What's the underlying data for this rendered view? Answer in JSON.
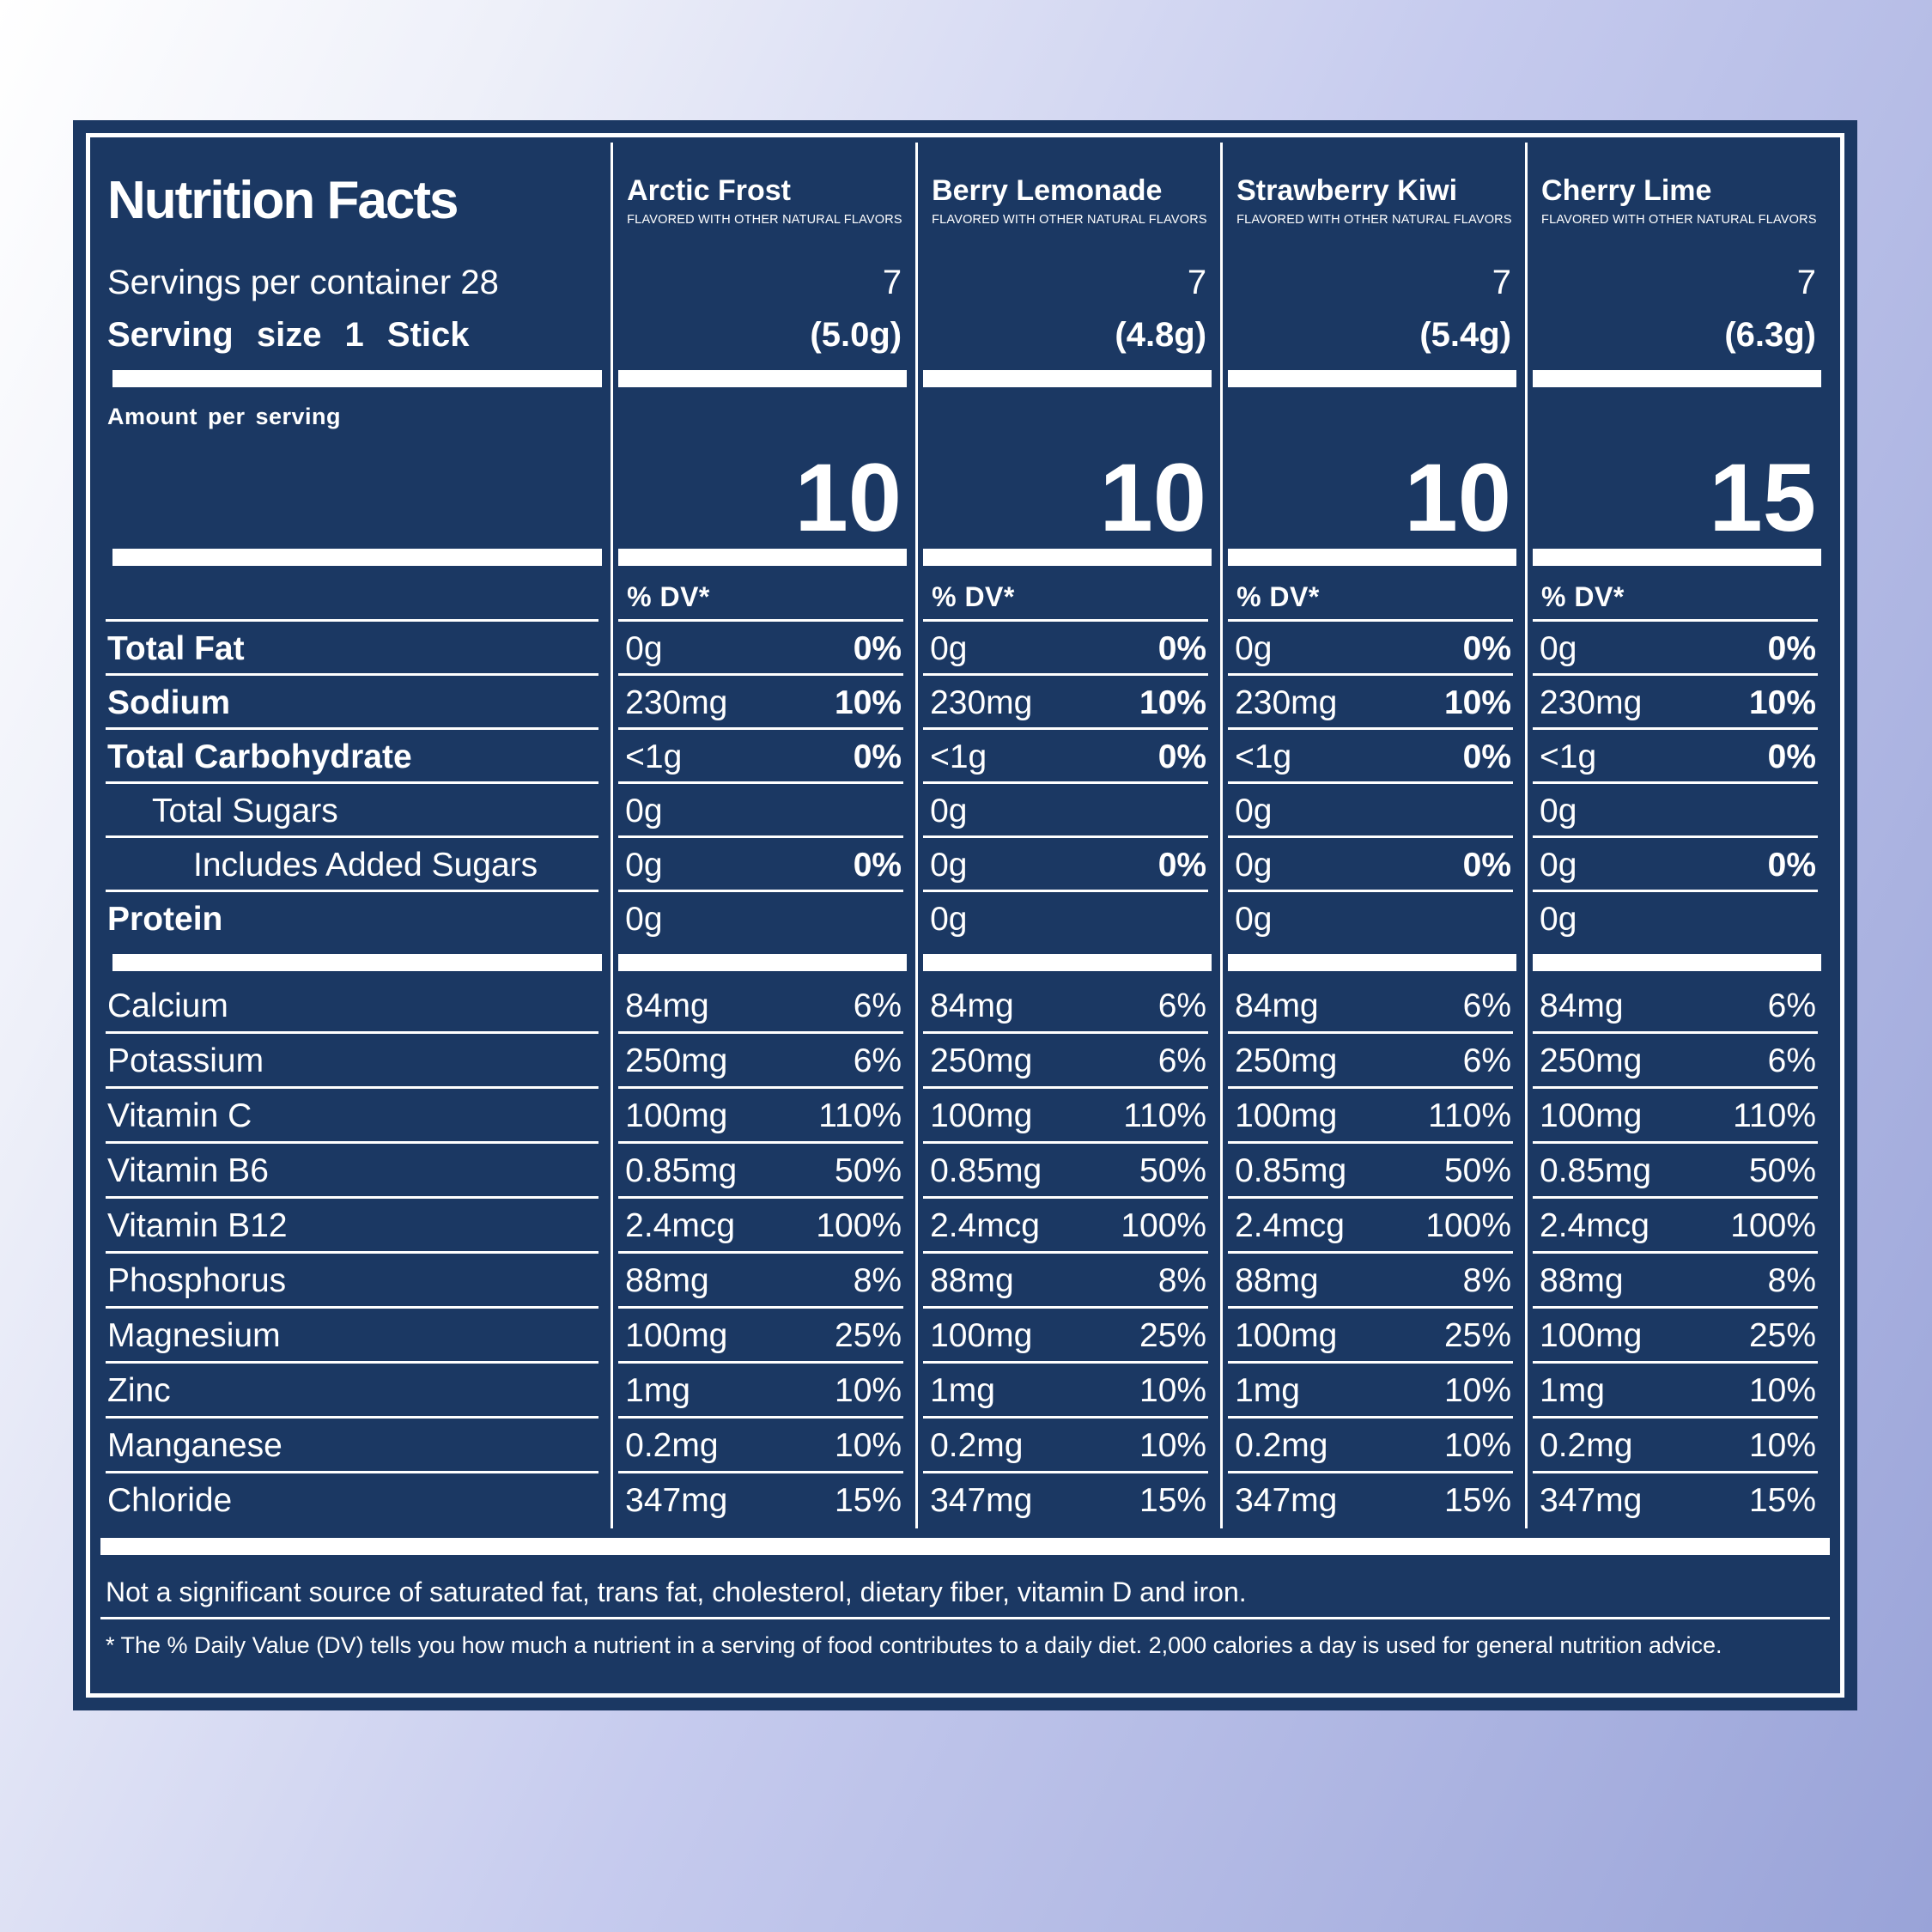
{
  "colors": {
    "panel_bg": "#1b3863",
    "panel_text": "#ffffff",
    "background_top_left": "#ffffff",
    "background_mid": "#c6cbee",
    "background_bottom_right": "#99a3d8"
  },
  "header": {
    "title": "Nutrition Facts",
    "servings_per_container_label": "Servings per container 28",
    "serving_size_label": "Serving size  1 Stick",
    "amount_per_serving_label": "Amount per serving",
    "dv_column_header": "% DV*"
  },
  "flavors": [
    {
      "name": "Arctic Frost",
      "tagline": "FLAVORED WITH OTHER NATURAL FLAVORS",
      "servings_per_container": "7",
      "serving_size": "(5.0g)",
      "calories": "10"
    },
    {
      "name": "Berry Lemonade",
      "tagline": "FLAVORED WITH OTHER NATURAL FLAVORS",
      "servings_per_container": "7",
      "serving_size": "(4.8g)",
      "calories": "10"
    },
    {
      "name": "Strawberry Kiwi",
      "tagline": "FLAVORED WITH OTHER NATURAL FLAVORS",
      "servings_per_container": "7",
      "serving_size": "(5.4g)",
      "calories": "10"
    },
    {
      "name": "Cherry Lime",
      "tagline": "FLAVORED WITH OTHER NATURAL FLAVORS",
      "servings_per_container": "7",
      "serving_size": "(6.3g)",
      "calories": "15"
    }
  ],
  "nutrient_rows": [
    {
      "label": "Total Fat",
      "style": "bold",
      "indent": 0,
      "amount": "0g",
      "dv": "0%",
      "dv_bold": true
    },
    {
      "label": "Sodium",
      "style": "bold",
      "indent": 0,
      "amount": "230mg",
      "dv": "10%",
      "dv_bold": true
    },
    {
      "label": "Total Carbohydrate",
      "style": "bold",
      "indent": 0,
      "amount": "<1g",
      "dv": "0%",
      "dv_bold": true
    },
    {
      "label": "Total Sugars",
      "style": "regular",
      "indent": 1,
      "amount": "0g",
      "dv": "",
      "dv_bold": false
    },
    {
      "label": "Includes Added Sugars",
      "style": "regular",
      "indent": 2,
      "amount": "0g",
      "dv": "0%",
      "dv_bold": true
    },
    {
      "label": "Protein",
      "style": "bold",
      "indent": 0,
      "amount": "0g",
      "dv": "",
      "dv_bold": false
    }
  ],
  "micronutrient_rows": [
    {
      "label": "Calcium",
      "amount": "84mg",
      "dv": "6%"
    },
    {
      "label": "Potassium",
      "amount": "250mg",
      "dv": "6%"
    },
    {
      "label": "Vitamin C",
      "amount": "100mg",
      "dv": "110%"
    },
    {
      "label": "Vitamin B6",
      "amount": "0.85mg",
      "dv": "50%"
    },
    {
      "label": "Vitamin B12",
      "amount": "2.4mcg",
      "dv": "100%"
    },
    {
      "label": "Phosphorus",
      "amount": "88mg",
      "dv": "8%"
    },
    {
      "label": "Magnesium",
      "amount": "100mg",
      "dv": "25%"
    },
    {
      "label": "Zinc",
      "amount": "1mg",
      "dv": "10%"
    },
    {
      "label": "Manganese",
      "amount": "0.2mg",
      "dv": "10%"
    },
    {
      "label": "Chloride",
      "amount": "347mg",
      "dv": "15%"
    }
  ],
  "footnotes": {
    "not_significant": "Not a significant source of saturated fat, trans fat, cholesterol, dietary fiber, vitamin D and iron.",
    "daily_value": "* The % Daily Value (DV) tells you how much a nutrient in a serving of food contributes to a daily diet. 2,000 calories a day is used for general nutrition advice."
  }
}
